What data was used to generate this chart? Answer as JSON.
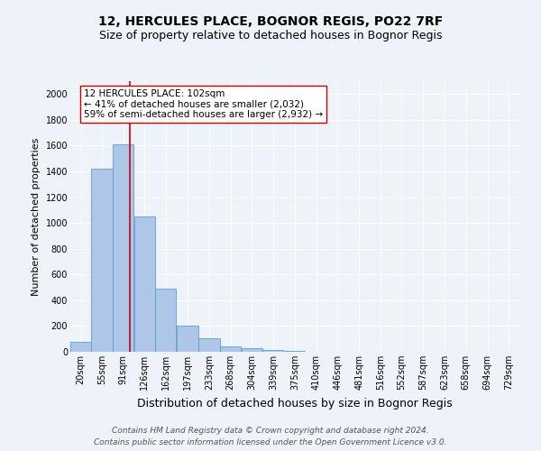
{
  "title": "12, HERCULES PLACE, BOGNOR REGIS, PO22 7RF",
  "subtitle": "Size of property relative to detached houses in Bognor Regis",
  "xlabel": "Distribution of detached houses by size in Bognor Regis",
  "ylabel": "Number of detached properties",
  "bin_labels": [
    "20sqm",
    "55sqm",
    "91sqm",
    "126sqm",
    "162sqm",
    "197sqm",
    "233sqm",
    "268sqm",
    "304sqm",
    "339sqm",
    "375sqm",
    "410sqm",
    "446sqm",
    "481sqm",
    "516sqm",
    "552sqm",
    "587sqm",
    "623sqm",
    "658sqm",
    "694sqm",
    "729sqm"
  ],
  "bin_edges": [
    2.5,
    37.5,
    72.5,
    108.5,
    143.5,
    179.5,
    215.5,
    250.5,
    286.5,
    321.5,
    357.5,
    393.5,
    428.5,
    464.5,
    499.5,
    535.5,
    570.5,
    606.5,
    641.5,
    677.5,
    713.5,
    748.5
  ],
  "bar_heights": [
    80,
    1420,
    1610,
    1050,
    490,
    205,
    108,
    45,
    25,
    15,
    10,
    0,
    0,
    0,
    0,
    0,
    0,
    0,
    0,
    0,
    0
  ],
  "bar_color": "#aec6e8",
  "bar_edge_color": "#5a9fd4",
  "property_value": 102,
  "property_line_color": "#cc0000",
  "annotation_line1": "12 HERCULES PLACE: 102sqm",
  "annotation_line2": "← 41% of detached houses are smaller (2,032)",
  "annotation_line3": "59% of semi-detached houses are larger (2,932) →",
  "annotation_box_color": "#ffffff",
  "annotation_box_edge_color": "#cc0000",
  "ylim": [
    0,
    2100
  ],
  "footer_line1": "Contains HM Land Registry data © Crown copyright and database right 2024.",
  "footer_line2": "Contains public sector information licensed under the Open Government Licence v3.0.",
  "background_color": "#eef2f9",
  "grid_color": "#ffffff",
  "title_fontsize": 10,
  "subtitle_fontsize": 9,
  "xlabel_fontsize": 9,
  "ylabel_fontsize": 8,
  "tick_fontsize": 7,
  "annotation_fontsize": 7.5,
  "footer_fontsize": 6.5
}
